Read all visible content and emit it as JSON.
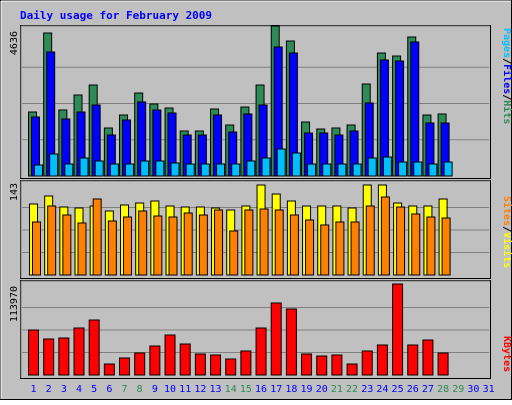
{
  "title": "Daily usage for February 2009",
  "colors": {
    "frame": "#c0c0c0",
    "plot": "#c0c0c0",
    "title": "#0000ff",
    "hits": "#2e8b57",
    "files": "#0000ff",
    "pages": "#00bfff",
    "visits": "#ffff00",
    "sites": "#ff8000",
    "kbytes": "#ff0000",
    "weekend_day": "#2e8b57",
    "weekday": "#0000ff"
  },
  "chart_data": [
    {
      "type": "bar",
      "panel": "hits-files-pages",
      "y_tick_label": "4636",
      "ylim": [
        0,
        4636
      ],
      "ylabel_parts": [
        "Pages",
        "/",
        "Files",
        "/",
        "Hits"
      ],
      "categories": [
        "1",
        "2",
        "3",
        "4",
        "5",
        "6",
        "7",
        "8",
        "9",
        "10",
        "11",
        "12",
        "13",
        "14",
        "15",
        "16",
        "17",
        "18",
        "19",
        "20",
        "21",
        "22",
        "23",
        "24",
        "25",
        "26",
        "27",
        "28",
        "29",
        "30",
        "31"
      ],
      "series": [
        {
          "name": "Hits",
          "values": [
            2050,
            4580,
            2120,
            2600,
            2920,
            1530,
            1950,
            2660,
            2300,
            2180,
            1440,
            1440,
            2140,
            1640,
            2220,
            2920,
            4780,
            4320,
            1720,
            1500,
            1530,
            1640,
            2950,
            3940,
            3850,
            4460,
            1950,
            1980,
            null,
            null,
            null
          ]
        },
        {
          "name": "Files",
          "values": [
            1890,
            3960,
            1830,
            2060,
            2270,
            1320,
            1800,
            2380,
            2120,
            2020,
            1310,
            1310,
            1960,
            1400,
            1990,
            2270,
            4120,
            3940,
            1390,
            1370,
            1310,
            1450,
            2320,
            3700,
            3670,
            4290,
            1700,
            1700,
            null,
            null,
            null
          ]
        },
        {
          "name": "Pages",
          "values": [
            350,
            690,
            390,
            570,
            470,
            370,
            390,
            480,
            490,
            420,
            390,
            390,
            390,
            370,
            480,
            570,
            850,
            720,
            390,
            390,
            390,
            390,
            570,
            620,
            440,
            440,
            390,
            440,
            null,
            null,
            null
          ]
        }
      ]
    },
    {
      "type": "bar",
      "panel": "visits-sites",
      "y_tick_label": "143",
      "ylim": [
        0,
        143
      ],
      "ylabel_parts": [
        "Sites",
        "/",
        "Visits"
      ],
      "categories": [
        "1",
        "2",
        "3",
        "4",
        "5",
        "6",
        "7",
        "8",
        "9",
        "10",
        "11",
        "12",
        "13",
        "14",
        "15",
        "16",
        "17",
        "18",
        "19",
        "20",
        "21",
        "22",
        "23",
        "24",
        "25",
        "26",
        "27",
        "28",
        "29",
        "30",
        "31"
      ],
      "series": [
        {
          "name": "Visits",
          "values": [
            113,
            126,
            108,
            107,
            110,
            101,
            111,
            115,
            118,
            110,
            108,
            108,
            106,
            103,
            110,
            143,
            128,
            117,
            109,
            110,
            110,
            107,
            143,
            143,
            115,
            109,
            109,
            120,
            null,
            null,
            null
          ]
        },
        {
          "name": "Sites",
          "values": [
            84,
            109,
            95,
            82,
            120,
            86,
            92,
            101,
            94,
            92,
            98,
            95,
            104,
            70,
            104,
            105,
            104,
            95,
            88,
            80,
            85,
            85,
            109,
            124,
            108,
            97,
            92,
            90,
            null,
            null,
            null
          ]
        }
      ]
    },
    {
      "type": "bar",
      "panel": "kbytes",
      "y_tick_label": "113970",
      "ylim": [
        0,
        113970
      ],
      "ylabel_parts": [
        "KBytes"
      ],
      "categories": [
        "1",
        "2",
        "3",
        "4",
        "5",
        "6",
        "7",
        "8",
        "9",
        "10",
        "11",
        "12",
        "13",
        "14",
        "15",
        "16",
        "17",
        "18",
        "19",
        "20",
        "21",
        "22",
        "23",
        "24",
        "25",
        "26",
        "27",
        "28",
        "29",
        "30",
        "31"
      ],
      "series": [
        {
          "name": "KBytes",
          "values": [
            57000,
            45000,
            47000,
            59000,
            70000,
            14000,
            22000,
            28000,
            37000,
            51000,
            39000,
            27000,
            25000,
            20000,
            30000,
            59000,
            91000,
            83000,
            27000,
            24000,
            25000,
            14000,
            30000,
            38000,
            115000,
            38000,
            44000,
            28000,
            null,
            null,
            null
          ]
        }
      ]
    }
  ],
  "x_axis": {
    "labels": [
      "1",
      "2",
      "3",
      "4",
      "5",
      "6",
      "7",
      "8",
      "9",
      "10",
      "11",
      "12",
      "13",
      "14",
      "15",
      "16",
      "17",
      "18",
      "19",
      "20",
      "21",
      "22",
      "23",
      "24",
      "25",
      "26",
      "27",
      "28",
      "29",
      "30",
      "31"
    ],
    "weekend": [
      false,
      false,
      false,
      false,
      false,
      false,
      true,
      true,
      false,
      false,
      false,
      false,
      false,
      true,
      true,
      false,
      false,
      false,
      false,
      false,
      true,
      true,
      false,
      false,
      false,
      false,
      false,
      true,
      true,
      false,
      false
    ]
  }
}
